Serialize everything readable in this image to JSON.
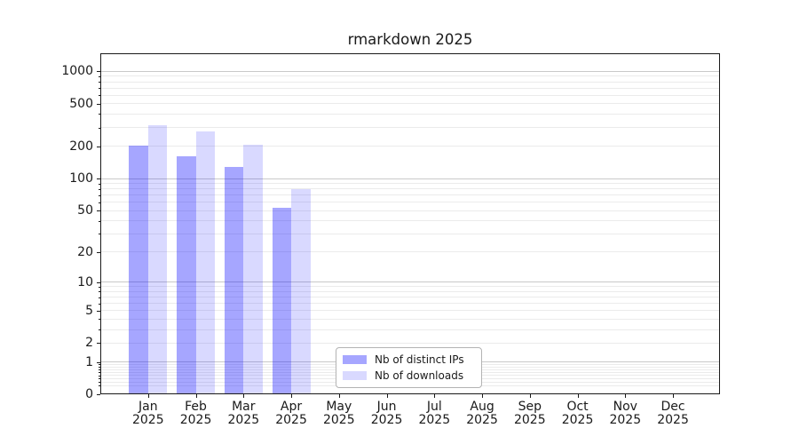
{
  "chart_data": {
    "type": "bar",
    "title": "rmarkdown 2025",
    "categories": [
      "Jan",
      "Feb",
      "Mar",
      "Apr",
      "May",
      "Jun",
      "Jul",
      "Aug",
      "Sep",
      "Oct",
      "Nov",
      "Dec"
    ],
    "x_year_label": "2025",
    "series": [
      {
        "name": "Nb of distinct IPs",
        "color": "#0000ff",
        "alpha": 0.35,
        "values": [
          204,
          162,
          129,
          53,
          null,
          null,
          null,
          null,
          null,
          null,
          null,
          null
        ]
      },
      {
        "name": "Nb of downloads",
        "color": "#0000ff",
        "alpha": 0.15,
        "values": [
          315,
          278,
          208,
          80,
          null,
          null,
          null,
          null,
          null,
          null,
          null,
          null
        ]
      }
    ],
    "yscale": "log1p",
    "ylim": [
      0,
      1450
    ],
    "yticks": [
      0,
      1,
      2,
      5,
      10,
      20,
      50,
      100,
      200,
      500,
      1000
    ],
    "grid": "horizontal",
    "legend_position": "lower-center"
  },
  "style": {
    "background": "#ffffff",
    "text_color": "#1a1a1a",
    "axis_color": "#1a1a1a",
    "major_grid_color": "#c9c9c9",
    "minor_grid_color": "#ebebeb",
    "legend_border": "#b3b3b3"
  }
}
